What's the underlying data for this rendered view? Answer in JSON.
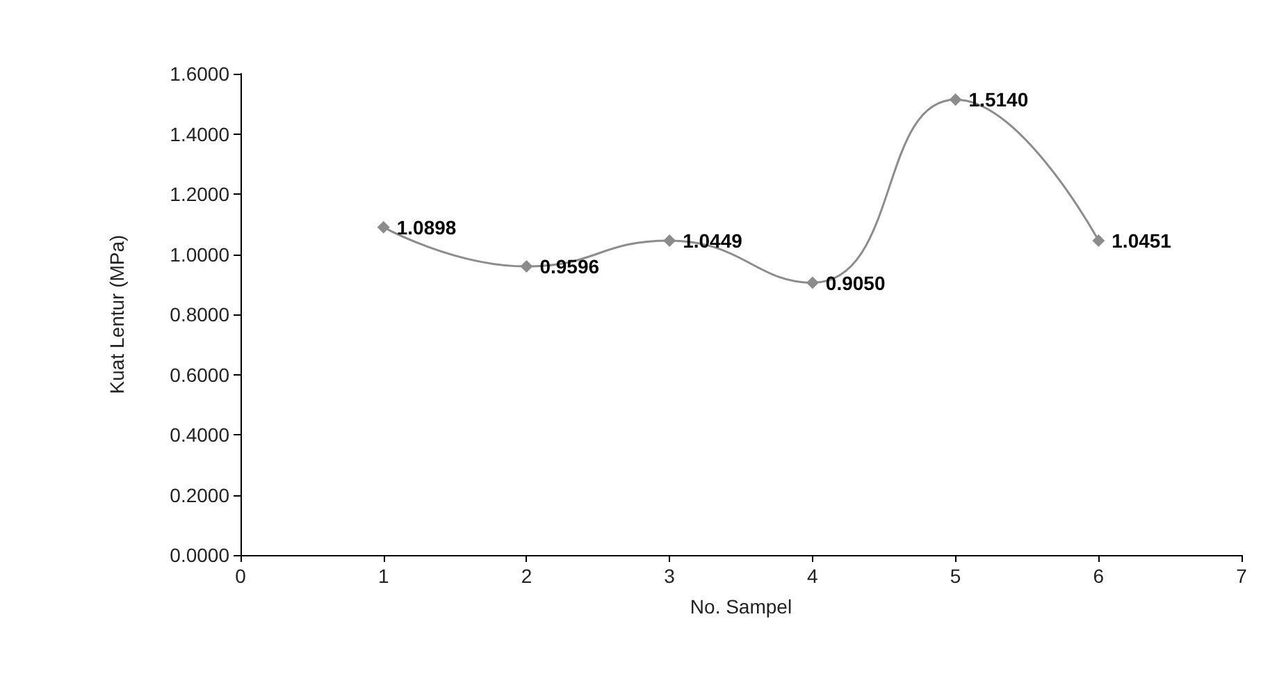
{
  "chart_data": {
    "type": "line",
    "xlabel": "No. Sampel",
    "ylabel": "Kuat Lentur (MPa)",
    "x": [
      1,
      2,
      3,
      4,
      5,
      6
    ],
    "series": [
      {
        "color": "#8c8c8c",
        "values": [
          1.0898,
          0.9596,
          1.0449,
          0.905,
          1.514,
          1.0451
        ],
        "value_labels": [
          "1.0898",
          "0.9596",
          "1.0449",
          "0.9050",
          "1.5140",
          "1.0451"
        ]
      }
    ],
    "xlim": [
      0,
      7
    ],
    "xticks": [
      0,
      1,
      2,
      3,
      4,
      5,
      6,
      7
    ],
    "ylim": [
      0,
      1.6
    ],
    "yticks": [
      {
        "value": 0,
        "label": "0.0000"
      },
      {
        "value": 0.2,
        "label": "0.2000"
      },
      {
        "value": 0.4,
        "label": "0.4000"
      },
      {
        "value": 0.6,
        "label": "0.6000"
      },
      {
        "value": 0.8,
        "label": "0.8000"
      },
      {
        "value": 1,
        "label": "1.0000"
      },
      {
        "value": 1.2,
        "label": "1.2000"
      },
      {
        "value": 1.4,
        "label": "1.4000"
      },
      {
        "value": 1.6,
        "label": "1.6000"
      }
    ],
    "grid": false,
    "marker": "diamond",
    "line_style": "solid"
  }
}
